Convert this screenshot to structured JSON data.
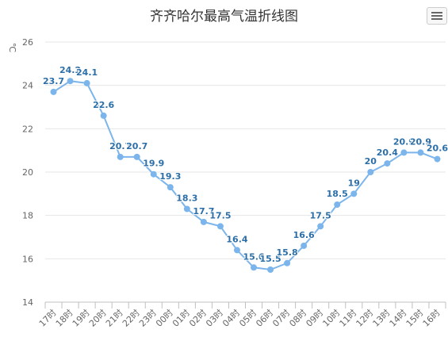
{
  "chart_data": {
    "type": "line",
    "title": "齐齐哈尔最高气温折线图",
    "ylabel": "℃",
    "xlabel": "",
    "ylim": [
      14,
      26
    ],
    "yticks": [
      "14",
      "16",
      "18",
      "20",
      "22",
      "24",
      "26"
    ],
    "categories": [
      "17时",
      "18时",
      "19时",
      "20时",
      "21时",
      "22时",
      "23时",
      "00时",
      "01时",
      "02时",
      "03时",
      "04时",
      "05时",
      "06时",
      "07时",
      "08时",
      "09时",
      "10时",
      "11时",
      "12时",
      "13时",
      "14时",
      "15时",
      "16时"
    ],
    "series": [
      {
        "values": [
          23.7,
          24.2,
          24.1,
          22.6,
          20.7,
          20.7,
          19.9,
          19.3,
          18.3,
          17.7,
          17.5,
          16.4,
          15.6,
          15.5,
          15.8,
          16.6,
          17.5,
          18.5,
          19,
          20,
          20.4,
          20.9,
          20.9,
          20.6
        ]
      }
    ],
    "grid": true,
    "legend": "none",
    "line_color": "#7cb5ec",
    "label_color": "#2c6fa8"
  },
  "toolbar": {
    "menu_icon": "hamburger-menu-icon"
  }
}
